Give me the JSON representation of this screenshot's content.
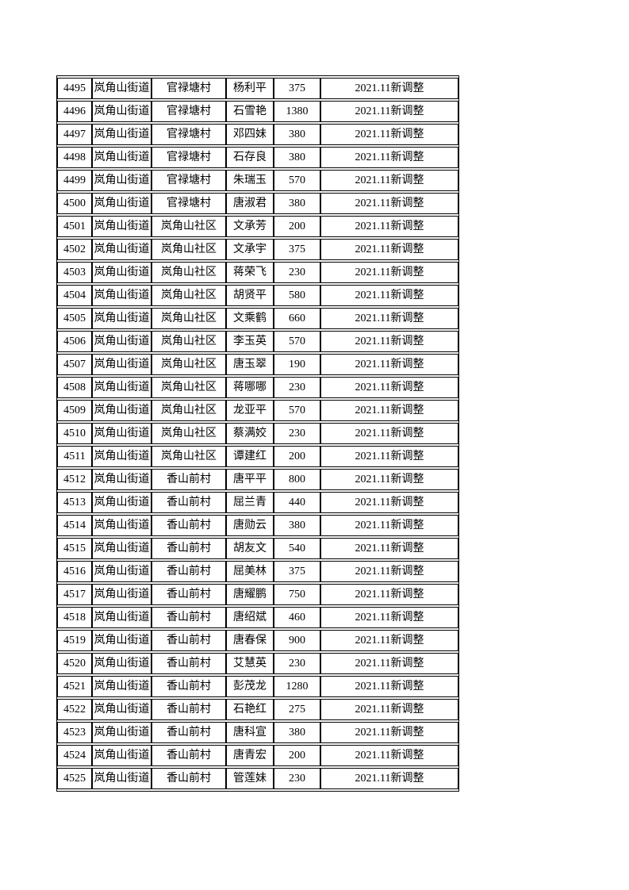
{
  "document": {
    "kind": "records-table-page",
    "border_color": "#000000",
    "background_color": "#ffffff",
    "text_color": "#000000"
  },
  "table": {
    "column_keys": [
      "seq",
      "street",
      "village",
      "person",
      "amount",
      "note"
    ],
    "rows": [
      {
        "seq": "4495",
        "street": "岚角山街道",
        "village": "官禄塘村",
        "person": "杨利平",
        "amount": "375",
        "note": "2021.11新调整"
      },
      {
        "seq": "4496",
        "street": "岚角山街道",
        "village": "官禄塘村",
        "person": "石雪艳",
        "amount": "1380",
        "note": "2021.11新调整"
      },
      {
        "seq": "4497",
        "street": "岚角山街道",
        "village": "官禄塘村",
        "person": "邓四妹",
        "amount": "380",
        "note": "2021.11新调整"
      },
      {
        "seq": "4498",
        "street": "岚角山街道",
        "village": "官禄塘村",
        "person": "石存良",
        "amount": "380",
        "note": "2021.11新调整"
      },
      {
        "seq": "4499",
        "street": "岚角山街道",
        "village": "官禄塘村",
        "person": "朱瑞玉",
        "amount": "570",
        "note": "2021.11新调整"
      },
      {
        "seq": "4500",
        "street": "岚角山街道",
        "village": "官禄塘村",
        "person": "唐淑君",
        "amount": "380",
        "note": "2021.11新调整"
      },
      {
        "seq": "4501",
        "street": "岚角山街道",
        "village": "岚角山社区",
        "person": "文承芳",
        "amount": "200",
        "note": "2021.11新调整"
      },
      {
        "seq": "4502",
        "street": "岚角山街道",
        "village": "岚角山社区",
        "person": "文承宇",
        "amount": "375",
        "note": "2021.11新调整"
      },
      {
        "seq": "4503",
        "street": "岚角山街道",
        "village": "岚角山社区",
        "person": "蒋荣飞",
        "amount": "230",
        "note": "2021.11新调整"
      },
      {
        "seq": "4504",
        "street": "岚角山街道",
        "village": "岚角山社区",
        "person": "胡贤平",
        "amount": "580",
        "note": "2021.11新调整"
      },
      {
        "seq": "4505",
        "street": "岚角山街道",
        "village": "岚角山社区",
        "person": "文乘鹤",
        "amount": "660",
        "note": "2021.11新调整"
      },
      {
        "seq": "4506",
        "street": "岚角山街道",
        "village": "岚角山社区",
        "person": "李玉英",
        "amount": "570",
        "note": "2021.11新调整"
      },
      {
        "seq": "4507",
        "street": "岚角山街道",
        "village": "岚角山社区",
        "person": "唐玉翠",
        "amount": "190",
        "note": "2021.11新调整"
      },
      {
        "seq": "4508",
        "street": "岚角山街道",
        "village": "岚角山社区",
        "person": "蒋哪哪",
        "amount": "230",
        "note": "2021.11新调整"
      },
      {
        "seq": "4509",
        "street": "岚角山街道",
        "village": "岚角山社区",
        "person": "龙亚平",
        "amount": "570",
        "note": "2021.11新调整"
      },
      {
        "seq": "4510",
        "street": "岚角山街道",
        "village": "岚角山社区",
        "person": "蔡满姣",
        "amount": "230",
        "note": "2021.11新调整"
      },
      {
        "seq": "4511",
        "street": "岚角山街道",
        "village": "岚角山社区",
        "person": "谭建红",
        "amount": "200",
        "note": "2021.11新调整"
      },
      {
        "seq": "4512",
        "street": "岚角山街道",
        "village": "香山前村",
        "person": "唐平平",
        "amount": "800",
        "note": "2021.11新调整"
      },
      {
        "seq": "4513",
        "street": "岚角山街道",
        "village": "香山前村",
        "person": "屈兰青",
        "amount": "440",
        "note": "2021.11新调整"
      },
      {
        "seq": "4514",
        "street": "岚角山街道",
        "village": "香山前村",
        "person": "唐勋云",
        "amount": "380",
        "note": "2021.11新调整"
      },
      {
        "seq": "4515",
        "street": "岚角山街道",
        "village": "香山前村",
        "person": "胡友文",
        "amount": "540",
        "note": "2021.11新调整"
      },
      {
        "seq": "4516",
        "street": "岚角山街道",
        "village": "香山前村",
        "person": "屈美林",
        "amount": "375",
        "note": "2021.11新调整"
      },
      {
        "seq": "4517",
        "street": "岚角山街道",
        "village": "香山前村",
        "person": "唐耀鹏",
        "amount": "750",
        "note": "2021.11新调整"
      },
      {
        "seq": "4518",
        "street": "岚角山街道",
        "village": "香山前村",
        "person": "唐绍斌",
        "amount": "460",
        "note": "2021.11新调整"
      },
      {
        "seq": "4519",
        "street": "岚角山街道",
        "village": "香山前村",
        "person": "唐春保",
        "amount": "900",
        "note": "2021.11新调整"
      },
      {
        "seq": "4520",
        "street": "岚角山街道",
        "village": "香山前村",
        "person": "艾慧英",
        "amount": "230",
        "note": "2021.11新调整"
      },
      {
        "seq": "4521",
        "street": "岚角山街道",
        "village": "香山前村",
        "person": "彭茂龙",
        "amount": "1280",
        "note": "2021.11新调整"
      },
      {
        "seq": "4522",
        "street": "岚角山街道",
        "village": "香山前村",
        "person": "石艳红",
        "amount": "275",
        "note": "2021.11新调整"
      },
      {
        "seq": "4523",
        "street": "岚角山街道",
        "village": "香山前村",
        "person": "唐科宣",
        "amount": "380",
        "note": "2021.11新调整"
      },
      {
        "seq": "4524",
        "street": "岚角山街道",
        "village": "香山前村",
        "person": "唐青宏",
        "amount": "200",
        "note": "2021.11新调整"
      },
      {
        "seq": "4525",
        "street": "岚角山街道",
        "village": "香山前村",
        "person": "管莲妹",
        "amount": "230",
        "note": "2021.11新调整"
      }
    ]
  }
}
